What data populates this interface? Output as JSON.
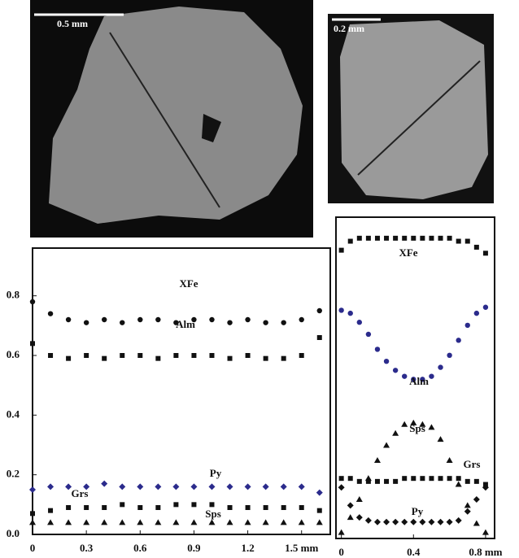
{
  "micrographs": [
    {
      "scale_label": "0.5 mm"
    },
    {
      "scale_label": "0.2 mm"
    }
  ],
  "chart_data": [
    {
      "type": "scatter",
      "x": [
        0,
        0.1,
        0.2,
        0.3,
        0.4,
        0.5,
        0.6,
        0.7,
        0.8,
        0.9,
        1.0,
        1.1,
        1.2,
        1.3,
        1.4,
        1.5,
        1.6
      ],
      "xlim": [
        0,
        1.66
      ],
      "ylim": [
        0,
        0.96
      ],
      "xticks": [
        0,
        0.3,
        0.6,
        0.9,
        1.2,
        {
          "value": 1.5,
          "label": "1.5 mm"
        }
      ],
      "yticks": [
        {
          "value": 0,
          "label": "0.0"
        },
        0.2,
        0.4,
        0.6,
        0.8
      ],
      "series": [
        {
          "name": "XFe",
          "color": "#111111",
          "marker": "circle",
          "values": [
            0.78,
            0.74,
            0.72,
            0.71,
            0.72,
            0.71,
            0.72,
            0.72,
            0.71,
            0.72,
            0.72,
            0.71,
            0.72,
            0.71,
            0.71,
            0.72,
            0.75
          ]
        },
        {
          "name": "Alm",
          "color": "#111111",
          "marker": "square",
          "values": [
            0.64,
            0.6,
            0.59,
            0.6,
            0.59,
            0.6,
            0.6,
            0.59,
            0.6,
            0.6,
            0.6,
            0.59,
            0.6,
            0.59,
            0.59,
            0.6,
            0.66
          ]
        },
        {
          "name": "Py",
          "color": "#2b2b8c",
          "marker": "diamond",
          "values": [
            0.15,
            0.16,
            0.16,
            0.16,
            0.17,
            0.16,
            0.16,
            0.16,
            0.16,
            0.16,
            0.16,
            0.16,
            0.16,
            0.16,
            0.16,
            0.16,
            0.14
          ]
        },
        {
          "name": "Grs",
          "color": "#111111",
          "marker": "square",
          "values": [
            0.07,
            0.08,
            0.09,
            0.09,
            0.09,
            0.1,
            0.09,
            0.09,
            0.1,
            0.1,
            0.1,
            0.09,
            0.09,
            0.09,
            0.09,
            0.09,
            0.08
          ]
        },
        {
          "name": "Sps",
          "color": "#111111",
          "marker": "triangle",
          "values": [
            0.04,
            0.04,
            0.04,
            0.04,
            0.04,
            0.04,
            0.04,
            0.04,
            0.04,
            0.04,
            0.04,
            0.04,
            0.04,
            0.04,
            0.04,
            0.04,
            0.04
          ]
        }
      ]
    },
    {
      "type": "scatter",
      "x": [
        0,
        0.05,
        0.1,
        0.15,
        0.2,
        0.25,
        0.3,
        0.35,
        0.4,
        0.45,
        0.5,
        0.55,
        0.6,
        0.65,
        0.7,
        0.75,
        0.8
      ],
      "xlim": [
        -0.03,
        0.85
      ],
      "ylim": [
        0,
        1.07
      ],
      "xticks": [
        0,
        0.4,
        {
          "value": 0.8,
          "label": "0.8 mm"
        }
      ],
      "series": [
        {
          "name": "XFe",
          "color": "#111111",
          "marker": "square",
          "values": [
            0.96,
            0.99,
            1.0,
            1.0,
            1.0,
            1.0,
            1.0,
            1.0,
            1.0,
            1.0,
            1.0,
            1.0,
            1.0,
            0.99,
            0.99,
            0.97,
            0.95
          ]
        },
        {
          "name": "Alm",
          "color": "#2b2b8c",
          "marker": "circle",
          "values": [
            0.76,
            0.75,
            0.72,
            0.68,
            0.63,
            0.59,
            0.56,
            0.54,
            0.53,
            0.53,
            0.54,
            0.57,
            0.61,
            0.66,
            0.71,
            0.75,
            0.77
          ]
        },
        {
          "name": "Sps",
          "color": "#111111",
          "marker": "triangle",
          "values": [
            0.02,
            0.07,
            0.13,
            0.2,
            0.26,
            0.31,
            0.35,
            0.38,
            0.385,
            0.38,
            0.37,
            0.33,
            0.26,
            0.18,
            0.11,
            0.05,
            0.02
          ]
        },
        {
          "name": "Grs",
          "color": "#111111",
          "marker": "square",
          "values": [
            0.2,
            0.2,
            0.19,
            0.19,
            0.19,
            0.19,
            0.19,
            0.2,
            0.2,
            0.2,
            0.2,
            0.2,
            0.2,
            0.2,
            0.19,
            0.19,
            0.18
          ]
        },
        {
          "name": "Py",
          "color": "#111111",
          "marker": "diamond",
          "values": [
            0.17,
            0.11,
            0.07,
            0.06,
            0.055,
            0.055,
            0.055,
            0.055,
            0.055,
            0.055,
            0.055,
            0.055,
            0.055,
            0.06,
            0.09,
            0.13,
            0.17
          ]
        }
      ]
    }
  ]
}
